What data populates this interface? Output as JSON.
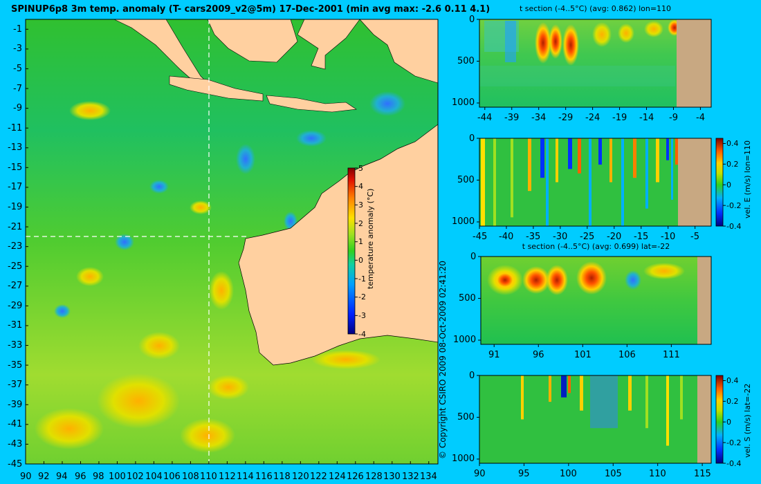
{
  "title": "SPINUP6p8 3m temp. anomaly (T- cars2009_v2@5m) 17-Dec-2001 (min avg max: -2.6 0.11 4.1)",
  "copyright": "© Copyright CSIRO 2009   08-Oct-2009 02:41:20",
  "colors": {
    "background": "#00ccff",
    "land": "#ffd0a0",
    "section_land": "#c8a882",
    "anomaly_mid": "#22c840"
  },
  "map": {
    "lon_ticks": [
      "90",
      "92",
      "94",
      "96",
      "98",
      "100",
      "102",
      "104",
      "106",
      "108",
      "110",
      "112",
      "114",
      "116",
      "118",
      "120",
      "122",
      "124",
      "126",
      "128",
      "130",
      "132",
      "134"
    ],
    "lat_ticks": [
      "-1",
      "-3",
      "-5",
      "-7",
      "-9",
      "-11",
      "-13",
      "-15",
      "-17",
      "-19",
      "-21",
      "-23",
      "-25",
      "-27",
      "-29",
      "-31",
      "-33",
      "-35",
      "-37",
      "-39",
      "-41",
      "-43",
      "-45"
    ],
    "section_lon": "110",
    "section_lat": "-22",
    "colorbar": {
      "label": "temperature anomaly (°C)",
      "ticks": [
        "5",
        "4",
        "3",
        "2",
        "1",
        "0",
        "-1",
        "-2",
        "-3",
        "-4"
      ]
    }
  },
  "panels": {
    "p1": {
      "title": "t section (-4..5°C) (avg: 0.862) lon=110",
      "x_ticks": [
        "-44",
        "-39",
        "-34",
        "-29",
        "-24",
        "-19",
        "-14",
        "-9",
        "-4"
      ],
      "y_ticks": [
        "0",
        "500",
        "1000"
      ]
    },
    "p2": {
      "x_ticks": [
        "-45",
        "-40",
        "-35",
        "-30",
        "-25",
        "-20",
        "-15",
        "-10",
        "-5"
      ],
      "y_ticks": [
        "0",
        "500",
        "1000"
      ],
      "cb_label": "vel. E (m/s) lon=110",
      "cb_ticks": [
        "0.4",
        "0.2",
        "0",
        "-0.2",
        "-0.4"
      ]
    },
    "p3": {
      "title": "t section (-4..5°C) (avg: 0.699) lat=-22",
      "x_ticks": [
        "91",
        "96",
        "101",
        "106",
        "111"
      ],
      "y_ticks": [
        "0",
        "500",
        "1000"
      ]
    },
    "p4": {
      "x_ticks": [
        "90",
        "95",
        "100",
        "105",
        "110",
        "115"
      ],
      "y_ticks": [
        "0",
        "500",
        "1000"
      ],
      "cb_label": "vel. S (m/s) lat=-22",
      "cb_ticks": [
        "0.4",
        "0.2",
        "0",
        "-0.2",
        "-0.4"
      ]
    }
  },
  "chart_data": [
    {
      "type": "heatmap",
      "title": "SPINUP6p8 3m temp. anomaly (T- cars2009_v2@5m) 17-Dec-2001 (min avg max: -2.6 0.11 4.1)",
      "variable": "temperature anomaly (°C)",
      "min": -2.6,
      "avg": 0.11,
      "max": 4.1,
      "color_range": [
        -4,
        5
      ],
      "xlim": [
        90,
        135
      ],
      "ylim": [
        -45,
        0
      ],
      "x_ticks": [
        90,
        92,
        94,
        96,
        98,
        100,
        102,
        104,
        106,
        108,
        110,
        112,
        114,
        116,
        118,
        120,
        122,
        124,
        126,
        128,
        130,
        132,
        134
      ],
      "y_ticks": [
        -1,
        -3,
        -5,
        -7,
        -9,
        -11,
        -13,
        -15,
        -17,
        -19,
        -21,
        -23,
        -25,
        -27,
        -29,
        -31,
        -33,
        -35,
        -37,
        -39,
        -41,
        -43,
        -45
      ],
      "section_lines": {
        "lon": 110,
        "lat": -22
      }
    },
    {
      "type": "heatmap",
      "title": "t section (-4..5°C) (avg: 0.862) lon=110",
      "color_range": [
        -4,
        5
      ],
      "avg": 0.862,
      "xlim": [
        -45,
        -2
      ],
      "ylim": [
        1050,
        0
      ],
      "x_ticks": [
        -44,
        -39,
        -34,
        -29,
        -24,
        -19,
        -14,
        -9,
        -4
      ],
      "y_ticks": [
        0,
        500,
        1000
      ]
    },
    {
      "type": "heatmap",
      "title": "",
      "variable": "vel. E (m/s) lon=110",
      "color_range": [
        -0.4,
        0.45
      ],
      "xlim": [
        -45,
        -2
      ],
      "ylim": [
        1050,
        0
      ],
      "x_ticks": [
        -45,
        -40,
        -35,
        -30,
        -25,
        -20,
        -15,
        -10,
        -5
      ],
      "y_ticks": [
        0,
        500,
        1000
      ]
    },
    {
      "type": "heatmap",
      "title": "t section (-4..5°C) (avg: 0.699) lat=-22",
      "color_range": [
        -4,
        5
      ],
      "avg": 0.699,
      "xlim": [
        89.5,
        115.5
      ],
      "ylim": [
        1050,
        0
      ],
      "x_ticks": [
        91,
        96,
        101,
        106,
        111
      ],
      "y_ticks": [
        0,
        500,
        1000
      ]
    },
    {
      "type": "heatmap",
      "title": "",
      "variable": "vel. S (m/s) lat=-22",
      "color_range": [
        -0.4,
        0.45
      ],
      "xlim": [
        90,
        116
      ],
      "ylim": [
        1050,
        0
      ],
      "x_ticks": [
        90,
        95,
        100,
        105,
        110,
        115
      ],
      "y_ticks": [
        0,
        500,
        1000
      ]
    }
  ]
}
